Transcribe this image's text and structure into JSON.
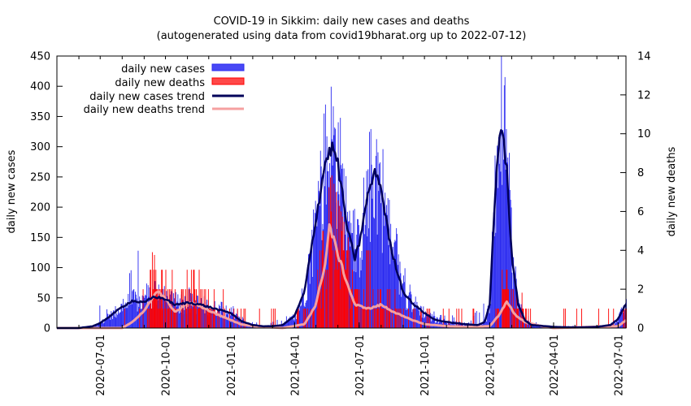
{
  "chart_data": {
    "type": "bar+line",
    "title": "COVID-19 in Sikkim: daily new cases and deaths",
    "subtitle": "(autogenerated using data from covid19bharat.org up to 2022-07-12)",
    "ylabel_left": "daily new cases",
    "ylabel_right": "daily new deaths",
    "ylim_left": [
      0,
      450
    ],
    "ylim_right": [
      0,
      14
    ],
    "yticks_left": [
      "0",
      "50",
      "100",
      "150",
      "200",
      "250",
      "300",
      "350",
      "400",
      "450"
    ],
    "yticks_right": [
      "0",
      "2",
      "4",
      "6",
      "8",
      "10",
      "12",
      "14"
    ],
    "xlim": [
      "2020-05-01",
      "2022-07-12"
    ],
    "xticks": [
      "2020-07-01",
      "2020-10-01",
      "2021-01-01",
      "2021-04-01",
      "2021-07-01",
      "2021-10-01",
      "2022-01-01",
      "2022-04-01",
      "2022-07-01"
    ],
    "legend_position": "top-left",
    "legend": {
      "cases": "daily new cases",
      "deaths": "daily new deaths",
      "cases_trend": "daily new cases trend",
      "deaths_trend": "daily new deaths trend"
    },
    "colors": {
      "cases": "#2a2af0",
      "deaths": "#ff0000",
      "cases_trend": "#00005a",
      "deaths_trend": "#f5a0a0"
    },
    "series": [
      {
        "name": "daily new cases trend",
        "axis": "left",
        "points": [
          [
            "2020-05-01",
            0
          ],
          [
            "2020-06-01",
            0
          ],
          [
            "2020-06-20",
            3
          ],
          [
            "2020-07-01",
            8
          ],
          [
            "2020-07-15",
            20
          ],
          [
            "2020-08-01",
            35
          ],
          [
            "2020-08-15",
            45
          ],
          [
            "2020-09-01",
            42
          ],
          [
            "2020-09-15",
            52
          ],
          [
            "2020-10-01",
            48
          ],
          [
            "2020-10-15",
            38
          ],
          [
            "2020-11-01",
            42
          ],
          [
            "2020-11-15",
            40
          ],
          [
            "2020-12-01",
            35
          ],
          [
            "2020-12-15",
            30
          ],
          [
            "2021-01-01",
            25
          ],
          [
            "2021-01-15",
            12
          ],
          [
            "2021-02-01",
            5
          ],
          [
            "2021-02-15",
            3
          ],
          [
            "2021-03-01",
            3
          ],
          [
            "2021-03-15",
            5
          ],
          [
            "2021-04-01",
            20
          ],
          [
            "2021-04-15",
            60
          ],
          [
            "2021-05-01",
            180
          ],
          [
            "2021-05-15",
            280
          ],
          [
            "2021-05-25",
            300
          ],
          [
            "2021-06-01",
            270
          ],
          [
            "2021-06-15",
            160
          ],
          [
            "2021-06-25",
            115
          ],
          [
            "2021-07-01",
            140
          ],
          [
            "2021-07-15",
            230
          ],
          [
            "2021-07-25",
            260
          ],
          [
            "2021-08-01",
            230
          ],
          [
            "2021-08-15",
            130
          ],
          [
            "2021-09-01",
            60
          ],
          [
            "2021-09-15",
            40
          ],
          [
            "2021-10-01",
            25
          ],
          [
            "2021-10-15",
            14
          ],
          [
            "2021-11-01",
            10
          ],
          [
            "2021-11-15",
            8
          ],
          [
            "2021-12-01",
            6
          ],
          [
            "2021-12-15",
            5
          ],
          [
            "2021-12-25",
            10
          ],
          [
            "2022-01-01",
            40
          ],
          [
            "2022-01-10",
            250
          ],
          [
            "2022-01-18",
            345
          ],
          [
            "2022-01-25",
            260
          ],
          [
            "2022-02-01",
            120
          ],
          [
            "2022-02-10",
            40
          ],
          [
            "2022-02-20",
            12
          ],
          [
            "2022-03-01",
            5
          ],
          [
            "2022-04-01",
            2
          ],
          [
            "2022-05-01",
            1
          ],
          [
            "2022-06-01",
            2
          ],
          [
            "2022-06-20",
            5
          ],
          [
            "2022-07-01",
            15
          ],
          [
            "2022-07-12",
            40
          ]
        ]
      },
      {
        "name": "daily new deaths trend",
        "axis": "right",
        "points": [
          [
            "2020-05-01",
            0
          ],
          [
            "2020-08-01",
            0
          ],
          [
            "2020-08-15",
            0.3
          ],
          [
            "2020-09-01",
            0.9
          ],
          [
            "2020-09-20",
            1.9
          ],
          [
            "2020-10-01",
            1.5
          ],
          [
            "2020-10-15",
            0.8
          ],
          [
            "2020-11-01",
            1.3
          ],
          [
            "2020-11-15",
            1.2
          ],
          [
            "2020-12-01",
            0.9
          ],
          [
            "2020-12-20",
            0.6
          ],
          [
            "2021-01-15",
            0.2
          ],
          [
            "2021-02-01",
            0.1
          ],
          [
            "2021-03-15",
            0
          ],
          [
            "2021-04-15",
            0.2
          ],
          [
            "2021-05-01",
            1.2
          ],
          [
            "2021-05-15",
            3.5
          ],
          [
            "2021-05-20",
            5.3
          ],
          [
            "2021-06-01",
            3.8
          ],
          [
            "2021-06-15",
            2.2
          ],
          [
            "2021-06-25",
            1.2
          ],
          [
            "2021-07-15",
            1.0
          ],
          [
            "2021-08-01",
            1.2
          ],
          [
            "2021-08-15",
            0.9
          ],
          [
            "2021-09-01",
            0.6
          ],
          [
            "2021-09-15",
            0.4
          ],
          [
            "2021-10-01",
            0.2
          ],
          [
            "2021-11-01",
            0.1
          ],
          [
            "2021-12-01",
            0.05
          ],
          [
            "2022-01-01",
            0.1
          ],
          [
            "2022-01-15",
            0.7
          ],
          [
            "2022-01-25",
            1.4
          ],
          [
            "2022-02-05",
            0.7
          ],
          [
            "2022-02-20",
            0.3
          ],
          [
            "2022-03-15",
            0.1
          ],
          [
            "2022-04-01",
            0
          ],
          [
            "2022-07-01",
            0.1
          ],
          [
            "2022-07-12",
            0.4
          ]
        ]
      },
      {
        "name": "daily new cases (approximate envelope)",
        "axis": "left",
        "points": [
          [
            "2020-05-01",
            0
          ],
          [
            "2020-06-20",
            5
          ],
          [
            "2020-06-30",
            48
          ],
          [
            "2020-07-15",
            30
          ],
          [
            "2020-08-01",
            60
          ],
          [
            "2020-08-10",
            108
          ],
          [
            "2020-08-25",
            148
          ],
          [
            "2020-09-05",
            90
          ],
          [
            "2020-09-25",
            68
          ],
          [
            "2020-10-10",
            60
          ],
          [
            "2020-11-01",
            70
          ],
          [
            "2020-11-20",
            60
          ],
          [
            "2020-12-05",
            115
          ],
          [
            "2020-12-15",
            55
          ],
          [
            "2021-01-05",
            45
          ],
          [
            "2021-01-15",
            20
          ],
          [
            "2021-02-15",
            5
          ],
          [
            "2021-04-01",
            25
          ],
          [
            "2021-04-20",
            110
          ],
          [
            "2021-05-05",
            260
          ],
          [
            "2021-05-20",
            330
          ],
          [
            "2021-05-28",
            420
          ],
          [
            "2021-06-05",
            330
          ],
          [
            "2021-06-20",
            200
          ],
          [
            "2021-07-01",
            210
          ],
          [
            "2021-07-15",
            295
          ],
          [
            "2021-07-25",
            300
          ],
          [
            "2021-08-05",
            240
          ],
          [
            "2021-08-20",
            180
          ],
          [
            "2021-09-05",
            90
          ],
          [
            "2021-09-20",
            70
          ],
          [
            "2021-10-05",
            40
          ],
          [
            "2021-11-01",
            25
          ],
          [
            "2021-12-01",
            12
          ],
          [
            "2022-01-01",
            55
          ],
          [
            "2022-01-10",
            300
          ],
          [
            "2022-01-17",
            428
          ],
          [
            "2022-01-25",
            310
          ],
          [
            "2022-02-05",
            140
          ],
          [
            "2022-02-15",
            50
          ],
          [
            "2022-03-01",
            12
          ],
          [
            "2022-04-01",
            4
          ],
          [
            "2022-06-20",
            5
          ],
          [
            "2022-07-12",
            45
          ]
        ]
      },
      {
        "name": "daily new deaths (approximate envelope)",
        "axis": "right",
        "points": [
          [
            "2020-05-01",
            0
          ],
          [
            "2020-08-01",
            0
          ],
          [
            "2020-08-20",
            1
          ],
          [
            "2020-09-10",
            4
          ],
          [
            "2020-10-01",
            3
          ],
          [
            "2020-11-01",
            4
          ],
          [
            "2020-12-01",
            3
          ],
          [
            "2020-12-25",
            2
          ],
          [
            "2021-02-01",
            1
          ],
          [
            "2021-03-01",
            0
          ],
          [
            "2021-04-20",
            2
          ],
          [
            "2021-05-10",
            5
          ],
          [
            "2021-05-22",
            8
          ],
          [
            "2021-06-05",
            6
          ],
          [
            "2021-06-20",
            4
          ],
          [
            "2021-07-10",
            5
          ],
          [
            "2021-08-01",
            5
          ],
          [
            "2021-08-20",
            3
          ],
          [
            "2021-09-15",
            2
          ],
          [
            "2021-10-15",
            1
          ],
          [
            "2021-12-20",
            2
          ],
          [
            "2022-01-15",
            4
          ],
          [
            "2022-01-28",
            3
          ],
          [
            "2022-02-10",
            2
          ],
          [
            "2022-03-10",
            1
          ],
          [
            "2022-04-01",
            0
          ],
          [
            "2022-07-05",
            1
          ],
          [
            "2022-07-12",
            1
          ]
        ]
      }
    ]
  }
}
